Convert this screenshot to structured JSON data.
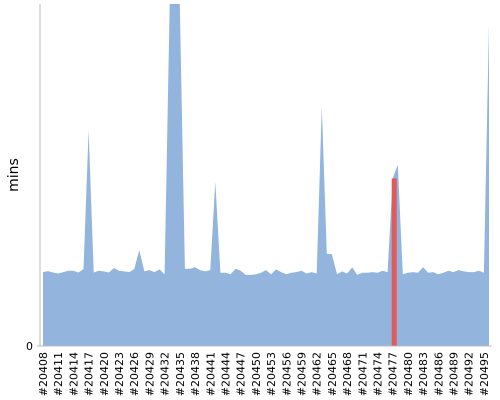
{
  "chart_data": {
    "type": "area",
    "y_label": "mins",
    "color": "#92b4dd",
    "highlight": {
      "index": 69,
      "color": "#e05a5a"
    },
    "categories": [
      "#20408",
      null,
      null,
      "#20411",
      null,
      null,
      "#20414",
      null,
      null,
      "#20417",
      null,
      null,
      "#20420",
      null,
      null,
      "#20423",
      null,
      null,
      "#20426",
      null,
      null,
      "#20429",
      null,
      null,
      "#20432",
      null,
      null,
      "#20435",
      null,
      null,
      "#20438",
      null,
      null,
      "#20441",
      null,
      null,
      "#20444",
      null,
      null,
      "#20447",
      null,
      null,
      "#20450",
      null,
      null,
      "#20453",
      null,
      null,
      "#20456",
      null,
      null,
      "#20459",
      null,
      null,
      "#20462",
      null,
      null,
      "#20465",
      null,
      null,
      "#20468",
      null,
      null,
      "#20471",
      null,
      null,
      "#20474",
      null,
      null,
      "#20477",
      null,
      null,
      "#20480",
      null,
      null,
      "#20483",
      null,
      null,
      "#20486",
      null,
      null,
      "#20489",
      null,
      null,
      "#20492",
      null,
      null,
      "#20495",
      null
    ],
    "values": [
      21.6,
      21.9,
      21.5,
      21.2,
      21.6,
      22,
      22,
      21.5,
      22.5,
      63,
      21.5,
      22,
      21.8,
      21.5,
      22.8,
      22,
      21.8,
      21.6,
      22.5,
      28,
      21.8,
      22.2,
      21.6,
      22.4,
      21,
      100,
      100,
      100,
      22.6,
      22.6,
      23,
      22.2,
      21.8,
      22.2,
      48,
      21.4,
      21.4,
      21,
      22.6,
      22,
      20.8,
      20.8,
      21,
      21.4,
      22.2,
      21,
      22.4,
      21.6,
      21,
      21.4,
      21.6,
      22,
      21.2,
      21.6,
      21.2,
      70,
      27,
      26.8,
      21,
      21.8,
      21.2,
      23,
      20.8,
      21.4,
      21.4,
      21.6,
      21.4,
      22,
      21.6,
      49,
      53,
      21,
      21.4,
      21.6,
      21.4,
      23,
      21.4,
      21.6,
      21,
      21.4,
      22,
      21.6,
      22.2,
      21.8,
      21.6,
      21.6,
      22,
      21.4,
      94
    ],
    "ylim": [
      0,
      100
    ],
    "yticks": [
      0
    ]
  }
}
